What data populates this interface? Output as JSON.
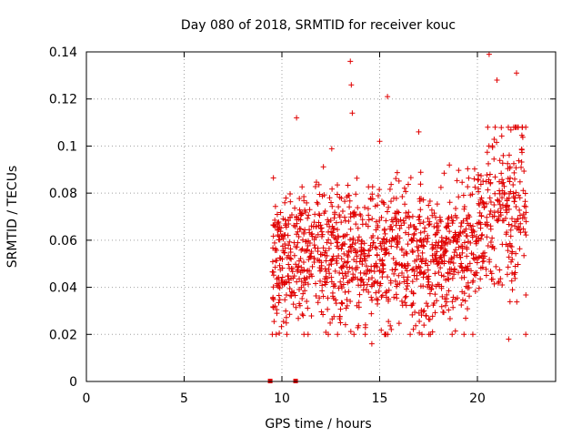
{
  "chart_data": {
    "type": "scatter",
    "title": "Day 080 of 2018, SRMTID for receiver kouc",
    "xlabel": "GPS time / hours",
    "ylabel": "SRMTID / TECUs",
    "xlim": [
      0,
      24
    ],
    "ylim": [
      0,
      0.14
    ],
    "xticks": [
      0,
      5,
      10,
      15,
      20
    ],
    "yticks": [
      0,
      0.02,
      0.04,
      0.06,
      0.08,
      0.1,
      0.12,
      0.14
    ],
    "xtick_labels": [
      "0",
      "5",
      "10",
      "15",
      "20"
    ],
    "ytick_labels": [
      "0",
      "0.02",
      "0.04",
      "0.06",
      "0.08",
      "0.1",
      "0.12",
      "0.14"
    ],
    "grid": true,
    "marker": "+",
    "color": "#e00000",
    "data_start_hour": 9.5,
    "data_end_hour": 22.5,
    "zero_markers_x": [
      9.4,
      10.7
    ],
    "outliers": [
      {
        "x": 13.5,
        "y": 0.136
      },
      {
        "x": 13.55,
        "y": 0.126
      },
      {
        "x": 13.6,
        "y": 0.114
      },
      {
        "x": 15.4,
        "y": 0.121
      },
      {
        "x": 10.75,
        "y": 0.112
      },
      {
        "x": 20.6,
        "y": 0.139
      },
      {
        "x": 22.0,
        "y": 0.131
      },
      {
        "x": 21.0,
        "y": 0.128
      },
      {
        "x": 17.0,
        "y": 0.106
      },
      {
        "x": 21.6,
        "y": 0.018
      },
      {
        "x": 14.6,
        "y": 0.016
      },
      {
        "x": 15.0,
        "y": 0.102
      }
    ],
    "trend": [
      {
        "x": 9.5,
        "y": 0.05
      },
      {
        "x": 12.0,
        "y": 0.055
      },
      {
        "x": 14.0,
        "y": 0.052
      },
      {
        "x": 16.0,
        "y": 0.055
      },
      {
        "x": 18.0,
        "y": 0.05
      },
      {
        "x": 19.5,
        "y": 0.055
      },
      {
        "x": 20.5,
        "y": 0.068
      },
      {
        "x": 22.5,
        "y": 0.075
      }
    ],
    "scatter_sd": 0.015,
    "n_points": 1400
  }
}
